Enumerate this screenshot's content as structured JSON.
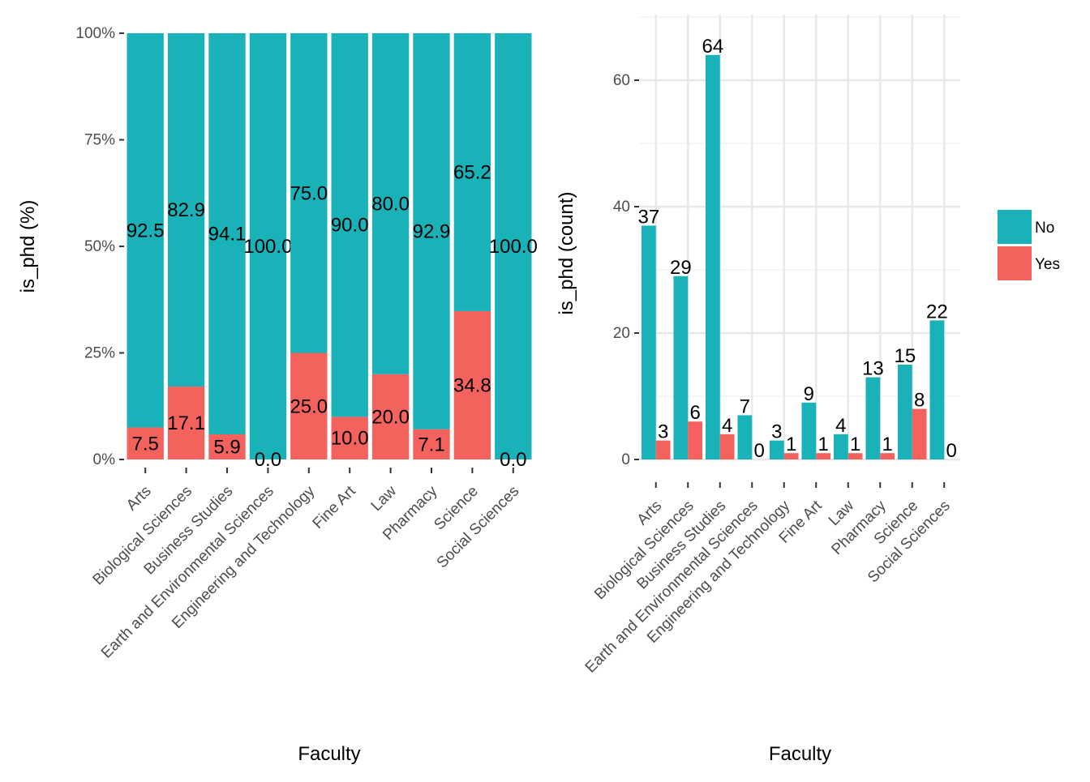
{
  "chart_data": [
    {
      "type": "bar",
      "stacked": true,
      "xlabel": "Faculty",
      "ylabel": "is_phd  (%)",
      "categories": [
        "Arts",
        "Biological Sciences",
        "Business Studies",
        "Earth and Environmental Sciences",
        "Engineering and Technology",
        "Fine Art",
        "Law",
        "Pharmacy",
        "Science",
        "Social Sciences"
      ],
      "series": [
        {
          "name": "No",
          "color": "#18B2B8",
          "values": [
            92.5,
            82.9,
            94.1,
            100.0,
            75.0,
            90.0,
            80.0,
            92.9,
            65.2,
            100.0
          ]
        },
        {
          "name": "Yes",
          "color": "#F4625E",
          "values": [
            7.5,
            17.1,
            5.9,
            0.0,
            25.0,
            10.0,
            20.0,
            7.1,
            34.8,
            0.0
          ]
        }
      ],
      "labels": {
        "No": [
          "92.5",
          "82.9",
          "94.1",
          "100.0",
          "75.0",
          "90.0",
          "80.0",
          "92.9",
          "65.2",
          "100.0"
        ],
        "Yes": [
          "7.5",
          "17.1",
          "5.9",
          "0.0",
          "25.0",
          "10.0",
          "20.0",
          "7.1",
          "34.8",
          "0.0"
        ]
      },
      "yticks": [
        "0%",
        "25%",
        "50%",
        "75%",
        "100%"
      ],
      "ylim": [
        0,
        100
      ],
      "grid": false
    },
    {
      "type": "bar",
      "stacked": false,
      "xlabel": "Faculty",
      "ylabel": "is_phd  (count)",
      "categories": [
        "Arts",
        "Biological Sciences",
        "Business Studies",
        "Earth and Environmental Sciences",
        "Engineering and Technology",
        "Fine Art",
        "Law",
        "Pharmacy",
        "Science",
        "Social Sciences"
      ],
      "series": [
        {
          "name": "No",
          "color": "#18B2B8",
          "values": [
            37,
            29,
            64,
            7,
            3,
            9,
            4,
            13,
            15,
            22
          ]
        },
        {
          "name": "Yes",
          "color": "#F4625E",
          "values": [
            3,
            6,
            4,
            0,
            1,
            1,
            1,
            1,
            8,
            0
          ]
        }
      ],
      "yticks": [
        "0",
        "20",
        "40",
        "60"
      ],
      "ylim": [
        0,
        70
      ],
      "grid": true,
      "legend": {
        "position": "right",
        "entries": [
          "No",
          "Yes"
        ]
      }
    }
  ]
}
